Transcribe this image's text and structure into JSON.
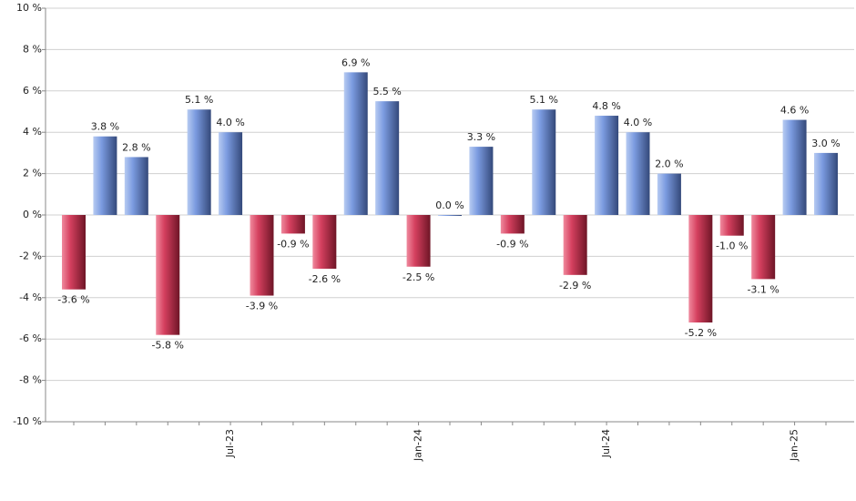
{
  "chart_data": {
    "type": "bar",
    "categories": [
      null,
      null,
      null,
      null,
      null,
      "Jul-23",
      null,
      null,
      null,
      null,
      null,
      "Jan-24",
      null,
      null,
      null,
      null,
      null,
      "Jul-24",
      null,
      null,
      null,
      null,
      null,
      "Jan-25",
      null
    ],
    "values": [
      -3.6,
      3.8,
      2.8,
      -5.8,
      5.1,
      4.0,
      -3.9,
      -0.9,
      -2.6,
      6.9,
      5.5,
      -2.5,
      0.0,
      3.3,
      -0.9,
      5.1,
      -2.9,
      4.8,
      4.0,
      2.0,
      -5.2,
      -1.0,
      -3.1,
      4.6,
      3.0
    ],
    "value_labels": [
      "-3.6 %",
      "3.8 %",
      "2.8 %",
      "-5.8 %",
      "5.1 %",
      "4.0 %",
      "-3.9 %",
      "-0.9 %",
      "-2.6 %",
      "6.9 %",
      "5.5 %",
      "-2.5 %",
      "0.0 %",
      "3.3 %",
      "-0.9 %",
      "5.1 %",
      "-2.9 %",
      "4.8 %",
      "4.0 %",
      "2.0 %",
      "-5.2 %",
      "-1.0 %",
      "-3.1 %",
      "4.6 %",
      "3.0 %"
    ],
    "positive_color": "#7b9be0",
    "negative_color": "#d5405f",
    "ylim": [
      -10,
      10
    ],
    "yticks": [
      {
        "value": -10,
        "label": "-10 %"
      },
      {
        "value": -8,
        "label": "-8 %"
      },
      {
        "value": -6,
        "label": "-6 %"
      },
      {
        "value": -4,
        "label": "-4 %"
      },
      {
        "value": -2,
        "label": "-2 %"
      },
      {
        "value": 0,
        "label": "0 %"
      },
      {
        "value": 2,
        "label": "2 %"
      },
      {
        "value": 4,
        "label": "4 %"
      },
      {
        "value": 6,
        "label": "6 %"
      },
      {
        "value": 8,
        "label": "8 %"
      },
      {
        "value": 10,
        "label": "10 %"
      }
    ],
    "grid": true
  }
}
